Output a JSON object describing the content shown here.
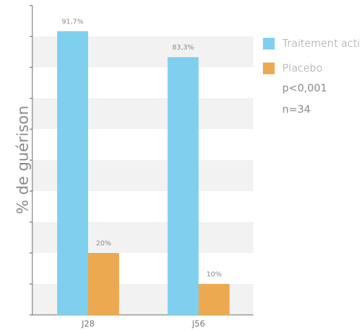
{
  "chart_data": {
    "type": "bar",
    "ylabel": "% de guérison",
    "categories": [
      "J28",
      "J56"
    ],
    "ylim": [
      0,
      100
    ],
    "series": [
      {
        "name": "Traitement actif",
        "color": "#7fd0ef",
        "values": [
          91.7,
          83.3
        ],
        "labels": [
          "91,7%",
          "83,3%"
        ]
      },
      {
        "name": "Placebo",
        "color": "#eda94f",
        "values": [
          20,
          10
        ],
        "labels": [
          "20%",
          "10%"
        ]
      }
    ],
    "annotations": [
      "p<0,001",
      "n=34"
    ],
    "grid_bands": true,
    "legend_position": "right"
  }
}
